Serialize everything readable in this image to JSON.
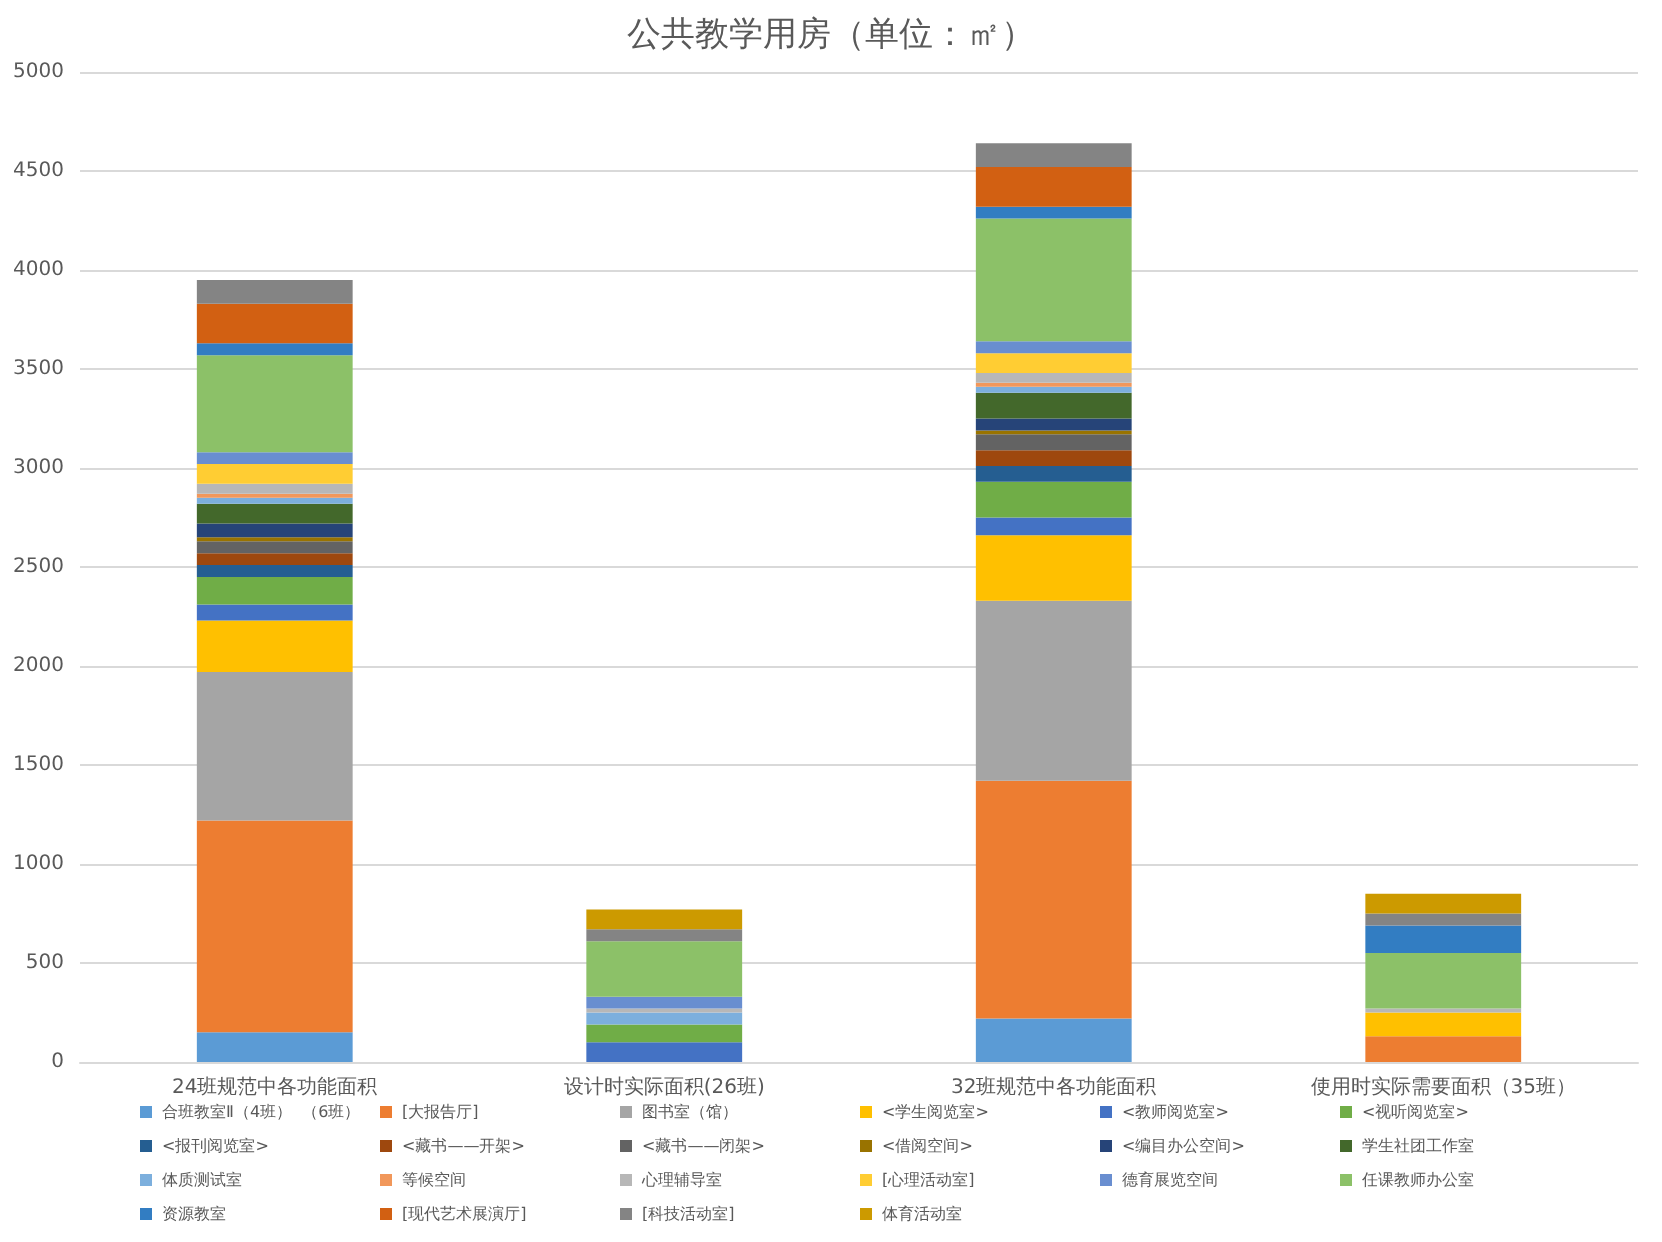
{
  "chart_data": {
    "type": "bar",
    "title": "公共教学用房（单位：㎡）",
    "stacked": true,
    "grid": "y",
    "legend": "bottom",
    "categories": [
      "24班规范中各功能面积",
      "设计时实际面积(26班)",
      "32班规范中各功能面积",
      "使用时实际需要面积（35班）"
    ],
    "ylim": [
      0,
      5000
    ],
    "yticks": [
      0,
      500,
      1000,
      1500,
      2000,
      2500,
      3000,
      3500,
      4000,
      4500,
      5000
    ],
    "series": [
      {
        "name": "合班教室Ⅱ（4班）  （6班）",
        "color": "#5b9bd5",
        "values": [
          150,
          null,
          220,
          null
        ]
      },
      {
        "name": "[大报告厅]",
        "color": "#ed7d31",
        "values": [
          1070,
          null,
          1200,
          130
        ]
      },
      {
        "name": "图书室（馆）",
        "color": "#a5a5a5",
        "values": [
          750,
          null,
          910,
          null
        ]
      },
      {
        "name": "<学生阅览室>",
        "color": "#ffc000",
        "values": [
          260,
          null,
          330,
          120
        ]
      },
      {
        "name": "<教师阅览室>",
        "color": "#4472c4",
        "values": [
          80,
          100,
          90,
          null
        ]
      },
      {
        "name": "<视听阅览室>",
        "color": "#70ad47",
        "values": [
          140,
          90,
          180,
          null
        ]
      },
      {
        "name": "<报刊阅览室>",
        "color": "#255e91",
        "values": [
          60,
          null,
          80,
          null
        ]
      },
      {
        "name": "<藏书——开架>",
        "color": "#9e480e",
        "values": [
          60,
          null,
          80,
          null
        ]
      },
      {
        "name": "<藏书——闭架>",
        "color": "#636363",
        "values": [
          60,
          null,
          80,
          null
        ]
      },
      {
        "name": "<借阅空间>",
        "color": "#997300",
        "values": [
          20,
          null,
          20,
          null
        ]
      },
      {
        "name": "<编目办公空间>",
        "color": "#264478",
        "values": [
          70,
          null,
          60,
          null
        ]
      },
      {
        "name": "学生社团工作室",
        "color": "#43682b",
        "values": [
          100,
          null,
          130,
          null
        ]
      },
      {
        "name": "体质测试室",
        "color": "#7cafdd",
        "values": [
          30,
          60,
          30,
          null
        ]
      },
      {
        "name": "等候空间",
        "color": "#f1975a",
        "values": [
          20,
          null,
          20,
          null
        ]
      },
      {
        "name": "心理辅导室",
        "color": "#b7b7b7",
        "values": [
          50,
          20,
          50,
          20
        ]
      },
      {
        "name": "[心理活动室]",
        "color": "#ffcd33",
        "values": [
          100,
          null,
          100,
          null
        ]
      },
      {
        "name": "德育展览空间",
        "color": "#698ed0",
        "values": [
          60,
          60,
          60,
          null
        ]
      },
      {
        "name": "任课教师办公室",
        "color": "#8cc168",
        "values": [
          490,
          280,
          620,
          280
        ]
      },
      {
        "name": "资源教室",
        "color": "#327dc2",
        "values": [
          60,
          null,
          60,
          140
        ]
      },
      {
        "name": "[现代艺术展演厅]",
        "color": "#d26012",
        "values": [
          200,
          null,
          200,
          null
        ]
      },
      {
        "name": "[科技活动室]",
        "color": "#848484",
        "values": [
          120,
          60,
          120,
          60
        ]
      },
      {
        "name": "体育活动室",
        "color": "#cc9a00",
        "values": [
          null,
          100,
          null,
          100
        ]
      }
    ]
  }
}
